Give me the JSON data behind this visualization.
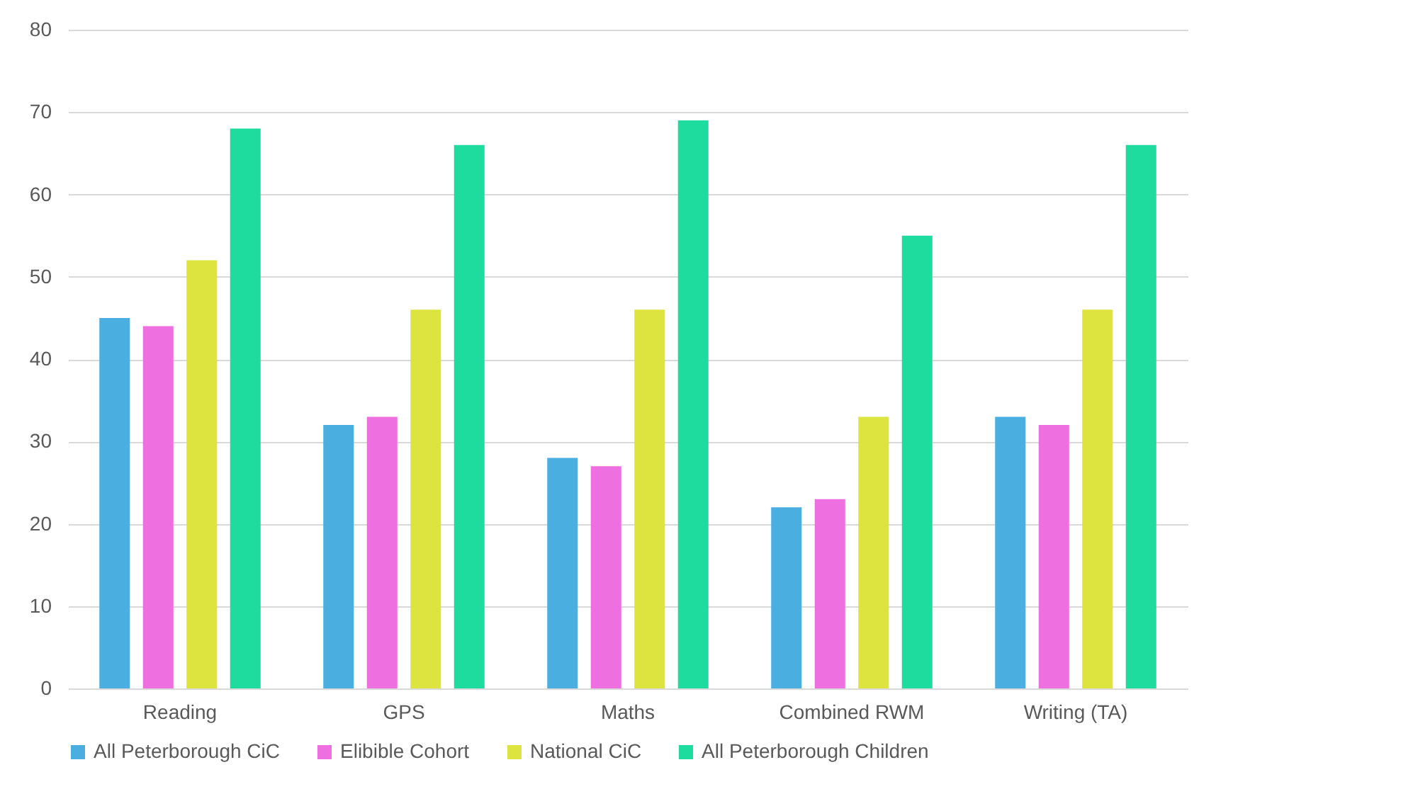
{
  "chart_data": {
    "type": "bar",
    "categories": [
      "Reading",
      "GPS",
      "Maths",
      "Combined RWM",
      "Writing (TA)"
    ],
    "series": [
      {
        "name": "All Peterborough CiC",
        "color": "#4aaee0",
        "values": [
          45,
          32,
          28,
          22,
          33
        ]
      },
      {
        "name": "Elibible Cohort",
        "color": "#ee6fe0",
        "values": [
          44,
          33,
          27,
          23,
          32
        ]
      },
      {
        "name": "National CiC",
        "color": "#dde33f",
        "values": [
          52,
          46,
          46,
          33,
          46
        ]
      },
      {
        "name": "All Peterborough Children",
        "color": "#1edc9e",
        "values": [
          68,
          66,
          69,
          55,
          66
        ]
      }
    ],
    "ylim": [
      0,
      80
    ],
    "yticks": [
      0,
      10,
      20,
      30,
      40,
      50,
      60,
      70,
      80
    ],
    "grid": "y",
    "legend": "bottom"
  }
}
